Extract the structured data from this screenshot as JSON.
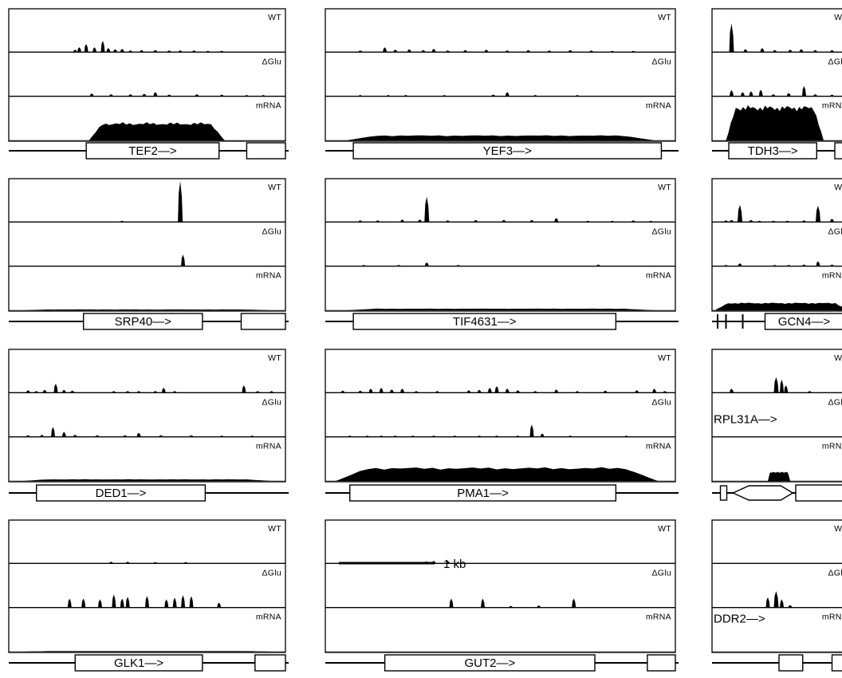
{
  "track_labels": {
    "wt": "WT",
    "dglu": "ΔGlu",
    "mrna": "mRNA"
  },
  "scale_bar": {
    "label": "1 kb"
  },
  "panels": [
    {
      "id": "tef2",
      "gene_label": "TEF2—>",
      "tracks": {
        "wt": [
          [
            0.24,
            0.06
          ],
          [
            0.255,
            0.12
          ],
          [
            0.28,
            0.2
          ],
          [
            0.31,
            0.12
          ],
          [
            0.34,
            0.28
          ],
          [
            0.36,
            0.1
          ],
          [
            0.385,
            0.07
          ],
          [
            0.41,
            0.08
          ],
          [
            0.44,
            0.04
          ],
          [
            0.48,
            0.05
          ],
          [
            0.53,
            0.05
          ],
          [
            0.58,
            0.04
          ],
          [
            0.62,
            0.04
          ],
          [
            0.67,
            0.04
          ],
          [
            0.72,
            0.03
          ],
          [
            0.77,
            0.03
          ]
        ],
        "dglu": [
          [
            0.3,
            0.07
          ],
          [
            0.37,
            0.05
          ],
          [
            0.44,
            0.05
          ],
          [
            0.49,
            0.06
          ],
          [
            0.53,
            0.1
          ],
          [
            0.58,
            0.04
          ],
          [
            0.68,
            0.05
          ],
          [
            0.77,
            0.04
          ],
          [
            0.86,
            0.03
          ],
          [
            0.92,
            0.03
          ]
        ],
        "mrna": {
          "start": 0.29,
          "end": 0.78,
          "level": 0.42
        }
      },
      "gene": {
        "line_start": 0.0,
        "line_end": 1.0,
        "exons": [
          [
            0.28,
            0.76
          ],
          [
            0.86,
            1.0
          ]
        ],
        "arrow": 0
      }
    },
    {
      "id": "yef3",
      "gene_label": "YEF3—>",
      "tracks": {
        "wt": [
          [
            0.1,
            0.04
          ],
          [
            0.17,
            0.12
          ],
          [
            0.2,
            0.06
          ],
          [
            0.24,
            0.07
          ],
          [
            0.28,
            0.05
          ],
          [
            0.31,
            0.08
          ],
          [
            0.35,
            0.04
          ],
          [
            0.4,
            0.05
          ],
          [
            0.46,
            0.06
          ],
          [
            0.52,
            0.04
          ],
          [
            0.58,
            0.05
          ],
          [
            0.64,
            0.04
          ],
          [
            0.7,
            0.05
          ],
          [
            0.76,
            0.04
          ],
          [
            0.82,
            0.03
          ],
          [
            0.88,
            0.03
          ]
        ],
        "dglu": [
          [
            0.1,
            0.03
          ],
          [
            0.18,
            0.03
          ],
          [
            0.23,
            0.03
          ],
          [
            0.34,
            0.03
          ],
          [
            0.48,
            0.04
          ],
          [
            0.52,
            0.1
          ],
          [
            0.6,
            0.03
          ],
          [
            0.72,
            0.03
          ]
        ],
        "mrna": {
          "start": 0.06,
          "end": 0.94,
          "level": 0.12
        }
      },
      "gene": {
        "line_start": 0.0,
        "line_end": 1.0,
        "exons": [
          [
            0.08,
            0.96
          ]
        ],
        "arrow": 0
      }
    },
    {
      "id": "tdh3",
      "gene_label": "TDH3—>",
      "tracks": {
        "wt": [
          [
            0.14,
            0.7
          ],
          [
            0.24,
            0.07
          ],
          [
            0.36,
            0.1
          ],
          [
            0.45,
            0.05
          ],
          [
            0.56,
            0.06
          ],
          [
            0.64,
            0.07
          ],
          [
            0.74,
            0.05
          ],
          [
            0.86,
            0.05
          ],
          [
            0.96,
            0.04
          ]
        ],
        "dglu": [
          [
            0.14,
            0.15
          ],
          [
            0.22,
            0.1
          ],
          [
            0.28,
            0.12
          ],
          [
            0.35,
            0.16
          ],
          [
            0.44,
            0.05
          ],
          [
            0.55,
            0.08
          ],
          [
            0.66,
            0.25
          ],
          [
            0.74,
            0.05
          ],
          [
            0.86,
            0.04
          ]
        ],
        "mrna": {
          "start": 0.1,
          "end": 0.8,
          "level": 0.82
        }
      },
      "gene": {
        "line_start": 0.0,
        "line_end": 1.0,
        "exons": [
          [
            0.12,
            0.75
          ],
          [
            0.88,
            1.0
          ]
        ],
        "arrow": 0
      }
    },
    {
      "id": "srp40",
      "gene_label": "SRP40—>",
      "tracks": {
        "wt": [
          [
            0.41,
            0.03
          ],
          [
            0.62,
            1.0
          ]
        ],
        "dglu": [
          [
            0.63,
            0.28
          ]
        ],
        "mrna": {
          "start": 0.05,
          "end": 0.95,
          "level": 0.02
        }
      },
      "gene": {
        "line_start": 0.0,
        "line_end": 1.0,
        "exons": [
          [
            0.27,
            0.7
          ],
          [
            0.84,
            1.0
          ]
        ],
        "arrow": 0
      }
    },
    {
      "id": "tif4631",
      "gene_label": "TIF4631—>",
      "tracks": {
        "wt": [
          [
            0.1,
            0.04
          ],
          [
            0.15,
            0.04
          ],
          [
            0.22,
            0.06
          ],
          [
            0.27,
            0.06
          ],
          [
            0.29,
            0.62
          ],
          [
            0.35,
            0.04
          ],
          [
            0.43,
            0.05
          ],
          [
            0.51,
            0.05
          ],
          [
            0.59,
            0.05
          ],
          [
            0.66,
            0.1
          ],
          [
            0.75,
            0.03
          ],
          [
            0.82,
            0.03
          ],
          [
            0.88,
            0.04
          ],
          [
            0.93,
            0.03
          ]
        ],
        "dglu": [
          [
            0.11,
            0.03
          ],
          [
            0.21,
            0.03
          ],
          [
            0.29,
            0.09
          ],
          [
            0.38,
            0.03
          ],
          [
            0.78,
            0.04
          ]
        ],
        "mrna": {
          "start": 0.06,
          "end": 0.94,
          "level": 0.04
        }
      },
      "gene": {
        "line_start": 0.0,
        "line_end": 1.0,
        "exons": [
          [
            0.08,
            0.83
          ]
        ],
        "arrow": 0
      }
    },
    {
      "id": "gcn4",
      "gene_label": "GCN4—>",
      "tracks": {
        "wt": [
          [
            0.1,
            0.04
          ],
          [
            0.14,
            0.05
          ],
          [
            0.2,
            0.42
          ],
          [
            0.28,
            0.05
          ],
          [
            0.34,
            0.03
          ],
          [
            0.44,
            0.03
          ],
          [
            0.54,
            0.03
          ],
          [
            0.66,
            0.04
          ],
          [
            0.76,
            0.4
          ],
          [
            0.86,
            0.08
          ],
          [
            0.96,
            0.04
          ]
        ],
        "dglu": [
          [
            0.1,
            0.03
          ],
          [
            0.2,
            0.07
          ],
          [
            0.45,
            0.03
          ],
          [
            0.55,
            0.03
          ],
          [
            0.66,
            0.04
          ],
          [
            0.76,
            0.12
          ],
          [
            0.86,
            0.04
          ]
        ],
        "mrna": {
          "start": 0.02,
          "end": 0.98,
          "level": 0.18
        }
      },
      "gene": {
        "line_start": 0.0,
        "line_end": 1.0,
        "exons": [
          [
            0.38,
            0.94
          ]
        ],
        "arrow": 0
      }
    },
    {
      "id": "ded1",
      "gene_label": "DED1—>",
      "tracks": {
        "wt": [
          [
            0.07,
            0.06
          ],
          [
            0.1,
            0.04
          ],
          [
            0.13,
            0.07
          ],
          [
            0.17,
            0.22
          ],
          [
            0.2,
            0.07
          ],
          [
            0.23,
            0.05
          ],
          [
            0.38,
            0.04
          ],
          [
            0.43,
            0.04
          ],
          [
            0.47,
            0.04
          ],
          [
            0.53,
            0.04
          ],
          [
            0.56,
            0.12
          ],
          [
            0.6,
            0.04
          ],
          [
            0.85,
            0.18
          ],
          [
            0.9,
            0.04
          ],
          [
            0.95,
            0.04
          ]
        ],
        "dglu": [
          [
            0.07,
            0.04
          ],
          [
            0.12,
            0.05
          ],
          [
            0.16,
            0.24
          ],
          [
            0.2,
            0.12
          ],
          [
            0.24,
            0.05
          ],
          [
            0.32,
            0.04
          ],
          [
            0.42,
            0.04
          ],
          [
            0.47,
            0.1
          ],
          [
            0.55,
            0.04
          ],
          [
            0.66,
            0.04
          ],
          [
            0.77,
            0.03
          ],
          [
            0.88,
            0.03
          ]
        ],
        "mrna": {
          "start": 0.05,
          "end": 0.95,
          "level": 0.04
        }
      },
      "gene": {
        "line_start": 0.0,
        "line_end": 1.0,
        "exons": [
          [
            0.1,
            0.71
          ]
        ],
        "arrow": 0
      }
    },
    {
      "id": "pma1",
      "gene_label": "PMA1—>",
      "tracks": {
        "wt": [
          [
            0.05,
            0.05
          ],
          [
            0.1,
            0.05
          ],
          [
            0.13,
            0.1
          ],
          [
            0.16,
            0.12
          ],
          [
            0.19,
            0.08
          ],
          [
            0.22,
            0.1
          ],
          [
            0.26,
            0.04
          ],
          [
            0.32,
            0.04
          ],
          [
            0.41,
            0.06
          ],
          [
            0.44,
            0.07
          ],
          [
            0.47,
            0.12
          ],
          [
            0.49,
            0.16
          ],
          [
            0.52,
            0.1
          ],
          [
            0.55,
            0.06
          ],
          [
            0.6,
            0.04
          ],
          [
            0.66,
            0.08
          ],
          [
            0.72,
            0.04
          ],
          [
            0.8,
            0.05
          ],
          [
            0.89,
            0.06
          ],
          [
            0.94,
            0.1
          ],
          [
            0.97,
            0.04
          ]
        ],
        "dglu": [
          [
            0.07,
            0.03
          ],
          [
            0.12,
            0.03
          ],
          [
            0.16,
            0.03
          ],
          [
            0.2,
            0.03
          ],
          [
            0.25,
            0.03
          ],
          [
            0.31,
            0.03
          ],
          [
            0.37,
            0.03
          ],
          [
            0.44,
            0.03
          ],
          [
            0.49,
            0.03
          ],
          [
            0.55,
            0.03
          ],
          [
            0.59,
            0.3
          ],
          [
            0.62,
            0.08
          ],
          [
            0.7,
            0.03
          ],
          [
            0.86,
            0.03
          ]
        ],
        "mrna": {
          "start": 0.03,
          "end": 0.95,
          "level": 0.32
        }
      },
      "gene": {
        "line_start": 0.0,
        "line_end": 1.0,
        "exons": [
          [
            0.07,
            0.83
          ]
        ],
        "arrow": 0
      }
    },
    {
      "id": "rpl31a",
      "gene_label": "RPL31A—>",
      "tracks": {
        "wt": [
          [
            0.14,
            0.1
          ],
          [
            0.46,
            0.38
          ],
          [
            0.5,
            0.32
          ],
          [
            0.53,
            0.18
          ],
          [
            0.7,
            0.04
          ]
        ],
        "dglu": [],
        "mrna": {
          "start": 0.4,
          "end": 0.56,
          "level": 0.22
        }
      },
      "gene": {
        "line_start": 0.0,
        "line_end": 1.0,
        "exons": [
          [
            0.6,
            1.0
          ]
        ],
        "arrow": 1
      }
    },
    {
      "id": "glk1",
      "gene_label": "GLK1—>",
      "tracks": {
        "wt": [
          [
            0.37,
            0.04
          ],
          [
            0.43,
            0.04
          ],
          [
            0.53,
            0.03
          ],
          [
            0.64,
            0.03
          ]
        ],
        "dglu": [
          [
            0.22,
            0.22
          ],
          [
            0.27,
            0.22
          ],
          [
            0.33,
            0.2
          ],
          [
            0.38,
            0.32
          ],
          [
            0.41,
            0.22
          ],
          [
            0.43,
            0.26
          ],
          [
            0.5,
            0.28
          ],
          [
            0.57,
            0.2
          ],
          [
            0.6,
            0.24
          ],
          [
            0.63,
            0.3
          ],
          [
            0.66,
            0.28
          ],
          [
            0.76,
            0.12
          ]
        ],
        "mrna": {
          "start": 0.05,
          "end": 0.95,
          "level": 0.015
        }
      },
      "gene": {
        "line_start": 0.0,
        "line_end": 1.0,
        "exons": [
          [
            0.24,
            0.7
          ],
          [
            0.89,
            1.0
          ]
        ],
        "arrow": 0
      }
    },
    {
      "id": "gut2",
      "gene_label": "GUT2—>",
      "tracks": {
        "wt": [
          [
            0.29,
            0.05
          ],
          [
            0.31,
            0.06
          ],
          [
            0.35,
            0.06
          ]
        ],
        "dglu": [
          [
            0.36,
            0.22
          ],
          [
            0.45,
            0.22
          ],
          [
            0.53,
            0.04
          ],
          [
            0.61,
            0.05
          ],
          [
            0.71,
            0.22
          ]
        ],
        "mrna": {
          "start": 0.05,
          "end": 0.95,
          "level": 0.0
        }
      },
      "gene": {
        "line_start": 0.0,
        "line_end": 1.0,
        "exons": [
          [
            0.17,
            0.77
          ],
          [
            0.92,
            1.0
          ]
        ],
        "arrow": 0
      }
    },
    {
      "id": "ddr2",
      "gene_label": "DDR2—>",
      "tracks": {
        "wt": [],
        "dglu": [
          [
            0.4,
            0.25
          ],
          [
            0.46,
            0.4
          ],
          [
            0.5,
            0.2
          ],
          [
            0.56,
            0.06
          ]
        ],
        "mrna": {
          "start": 0.05,
          "end": 0.95,
          "level": 0.0
        }
      },
      "gene": {
        "line_start": 0.0,
        "line_end": 1.0,
        "exons": [
          [
            0.48,
            0.65
          ],
          [
            0.86,
            1.0
          ]
        ],
        "arrow": 0
      }
    }
  ]
}
